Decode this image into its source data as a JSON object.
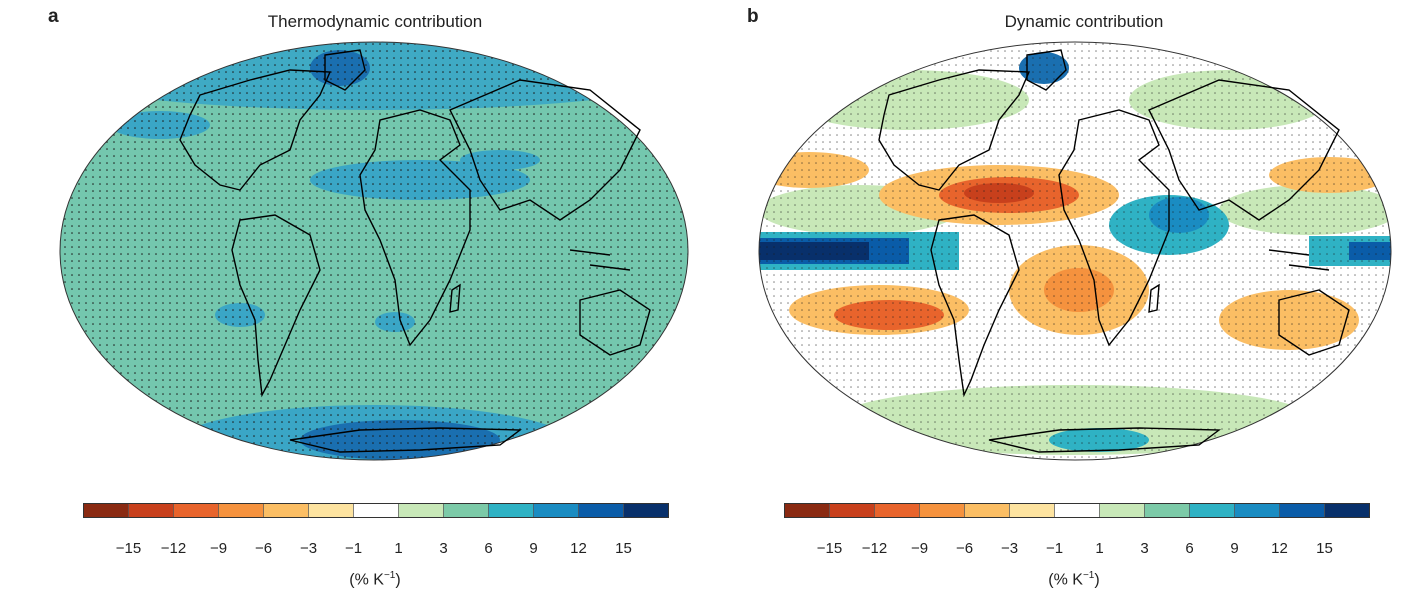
{
  "panels": [
    {
      "letter": "a",
      "title": "Thermodynamic contribution",
      "unit_prefix": "(% K",
      "unit_sup": "−1",
      "unit_suffix": ")"
    },
    {
      "letter": "b",
      "title": "Dynamic contribution",
      "unit_prefix": "(% K",
      "unit_sup": "−1",
      "unit_suffix": ")"
    }
  ],
  "colorbar": {
    "tick_labels": [
      "−15",
      "−12",
      "−9",
      "−6",
      "−3",
      "−1",
      "1",
      "3",
      "6",
      "9",
      "12",
      "15"
    ],
    "colors": [
      "#8a2a12",
      "#c8401c",
      "#e8642c",
      "#f5923e",
      "#fbbe64",
      "#fde3a0",
      "#ffffff",
      "#c8e8b8",
      "#7ccaa8",
      "#2fb2c4",
      "#1a8cc2",
      "#0a5ca8",
      "#08306b"
    ]
  },
  "map_colors": {
    "ocean_base_a": "#74c7ae",
    "ocean_base_b": "#ffffff",
    "coast": "#000000"
  }
}
